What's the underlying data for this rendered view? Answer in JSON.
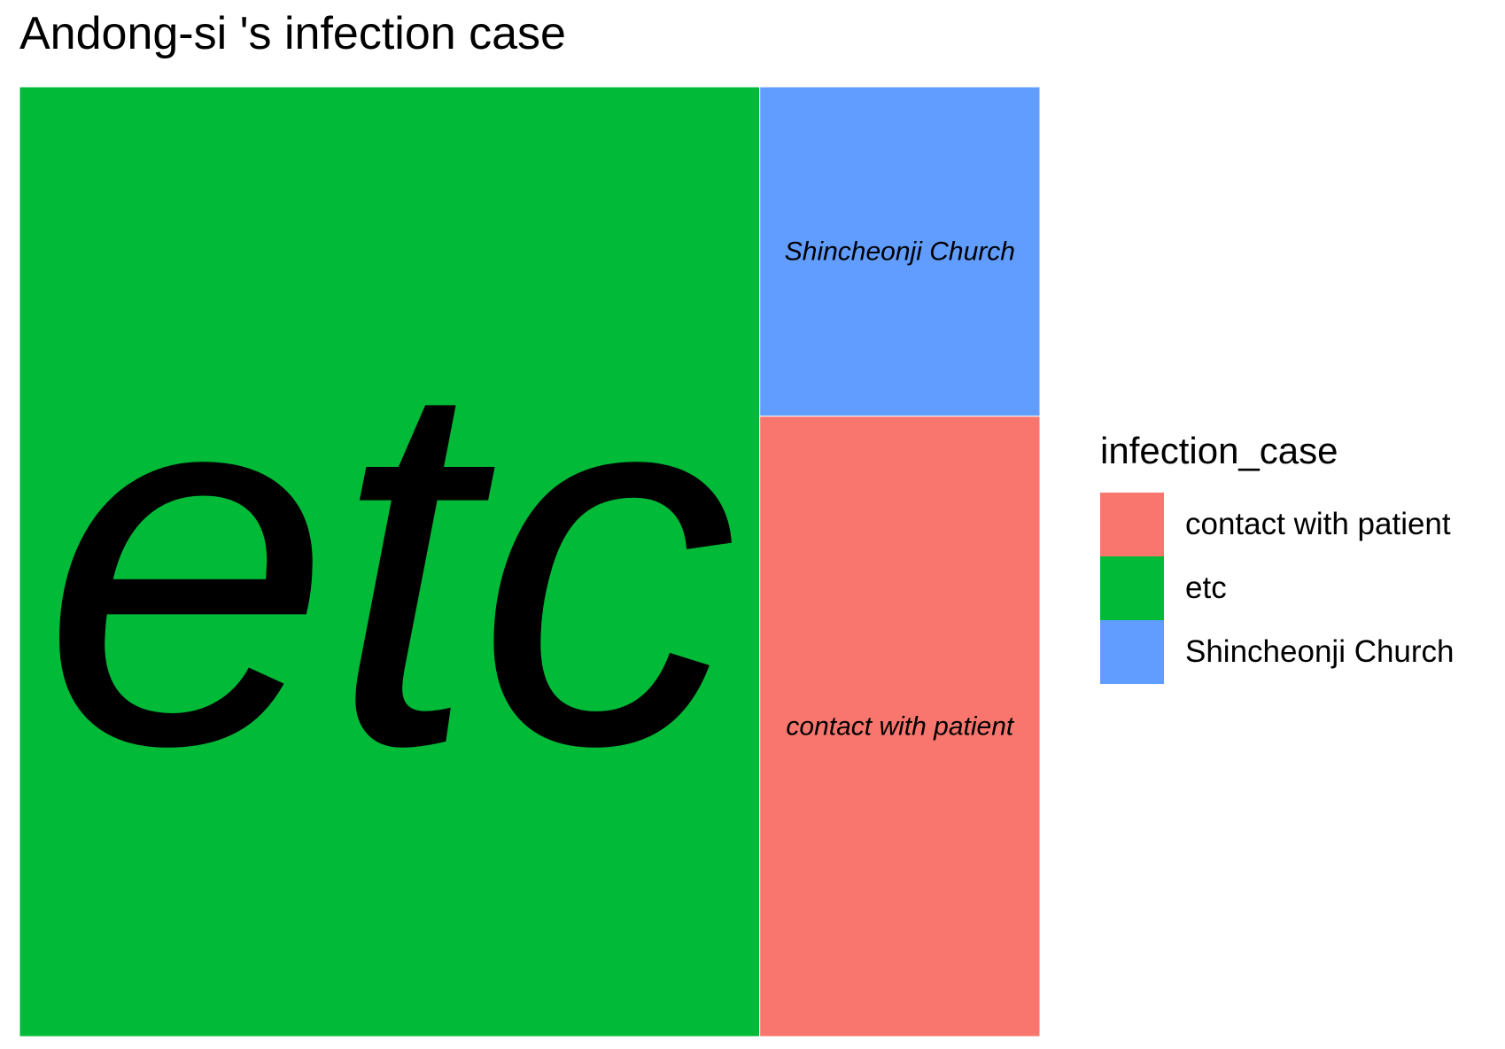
{
  "title": "Andong-si 's infection case",
  "legend": {
    "title": "infection_case",
    "items": [
      {
        "label": "contact with patient",
        "color": "#F8766D"
      },
      {
        "label": "etc",
        "color": "#00BA38"
      },
      {
        "label": "Shincheonji Church",
        "color": "#619CFF"
      }
    ]
  },
  "chart_data": {
    "type": "treemap",
    "title": "Andong-si 's infection case",
    "legend_title": "infection_case",
    "legend_position": "right",
    "tiles": [
      {
        "label": "etc",
        "share": 0.716,
        "color": "#00BA38"
      },
      {
        "label": "contact with patient",
        "share": 0.177,
        "color": "#F8766D"
      },
      {
        "label": "Shincheonji Church",
        "share": 0.094,
        "color": "#619CFF"
      }
    ]
  }
}
